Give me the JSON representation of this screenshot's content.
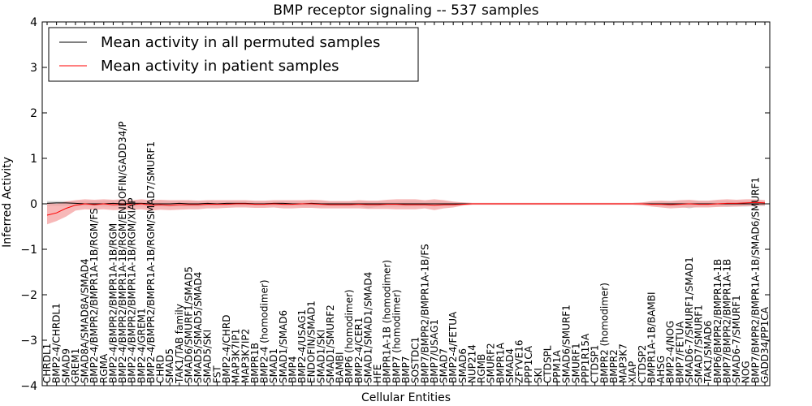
{
  "chart_data": {
    "type": "line",
    "title": "BMP receptor signaling -- 537 samples",
    "xlabel": "Cellular Entities",
    "ylabel": "Inferred Activity",
    "ylim": [
      -4,
      4
    ],
    "yticks": [
      -4,
      -3,
      -2,
      -1,
      0,
      1,
      2,
      3,
      4
    ],
    "legend_position": "top-left",
    "colors": {
      "permuted": "#000000",
      "patient": "#ff0000",
      "patient_band": "#f4a0a0",
      "permuted_band": "#cccccc"
    },
    "categories": [
      "CHRDL1",
      "BMP2-4/CHRDL1",
      "SMAD9",
      "GREM1",
      "SMAD8A/SMAD8A/SMAD4",
      "BMP2-4/BMPR2/BMPR1A-1B/RGM/FS",
      "RGMA",
      "BMP2-4/BMPR2/BMPR1A-1B/RGM",
      "BMP2-4/BMPR2/BMPR1A-1B/RGM/ENDOFIN/GADD34/P",
      "BMP2-4/BMPR2/BMPR1A-1B/RGM/XIAP",
      "BMP2-4/GREM1",
      "BMP2-4/BMPR2/BMPR1A-1B/RGM/SMAD7/SMURF1",
      "CHRD",
      "SMAD5",
      "TAK1/TAB family",
      "SMAD6/SMURF1/SMAD5",
      "SMAD5/SMAD5/SMAD4",
      "SMAD5/SKI",
      "FST",
      "BMP2-4/CHRD",
      "MAP3K7IP1",
      "MAP3K7IP2",
      "BMPR1B",
      "BMP2-4 (homodimer)",
      "SMAD1",
      "SMAD1/SMAD6",
      "BMP4",
      "BMP2-4/USAG1",
      "ENDOFIN/SMAD1",
      "SMAD1/SKI",
      "SMAD1/SMURF2",
      "BAMBI",
      "BMP6 (homodimer)",
      "BMP2-4/CER1",
      "SMAD1/SMAD1/SMAD4",
      "HFE",
      "BMPR1A-1B (homodimer)",
      "BMP7 (homodimer)",
      "BMP7",
      "SOSTDC1",
      "BMP7/BMPR2/BMPR1A-1B/FS",
      "BMP7/USAG1",
      "SMAD7",
      "BMP2-4/FETUA",
      "SMAD6",
      "NUP214",
      "RGMB",
      "SMURF2",
      "BMPR1A",
      "SMAD4",
      "ZFYVE16",
      "PPP1CA",
      "SKI",
      "CTDSPL",
      "PPM1A",
      "SMAD6/SMURF1",
      "SMURF1",
      "PPP1R15A",
      "CTDSP1",
      "BMPR2 (homodimer)",
      "BMPR2",
      "MAP3K7",
      "XIAP",
      "CTDSP2",
      "BMPR1A-1B/BAMBI",
      "AHSG",
      "BMP2-4/NOG",
      "BMP7/FETUA",
      "SMAD6-7/SMURF1/SMAD1",
      "SMAD7/SMURF1",
      "TAK1/SMAD6",
      "BMP6/BMPR2/BMPR1A-1B",
      "BMP7/BMPR2/BMPR1A-1B",
      "SMAD6-7/SMURF1",
      "NOG",
      "BMP7/BMPR2/BMPR1A-1B/SMAD6/SMURF1",
      "GADD34/PP1CA"
    ],
    "series": [
      {
        "name": "Mean activity in all permuted samples",
        "values": [
          0.01,
          0.02,
          0.02,
          0.01,
          0.0,
          0.0,
          0.0,
          0.01,
          0.0,
          0.01,
          0.01,
          0.0,
          0.0,
          0.0,
          0.01,
          0.0,
          0.0,
          0.01,
          0.0,
          0.01,
          0.01,
          0.01,
          0.0,
          0.0,
          0.01,
          0.01,
          0.0,
          0.0,
          0.01,
          0.0,
          0.0,
          0.0,
          0.0,
          0.0,
          0.0,
          0.0,
          0.0,
          0.0,
          0.0,
          0.0,
          0.0,
          0.0,
          0.0,
          0.0,
          0.0,
          0.0,
          0.0,
          0.0,
          0.0,
          0.0,
          0.0,
          0.0,
          0.0,
          0.0,
          0.0,
          0.0,
          0.0,
          0.0,
          0.0,
          0.0,
          0.0,
          0.0,
          0.0,
          0.0,
          0.0,
          0.0,
          0.0,
          0.0,
          0.0,
          0.0,
          0.0,
          0.0,
          0.0,
          0.0,
          0.0,
          0.0,
          0.0
        ],
        "lower": [
          -0.04,
          -0.05,
          -0.05,
          -0.05,
          -0.05,
          -0.05,
          -0.06,
          -0.06,
          -0.06,
          -0.06,
          -0.06,
          -0.06,
          -0.06,
          -0.07,
          -0.06,
          -0.06,
          -0.06,
          -0.05,
          -0.05,
          -0.05,
          -0.05,
          -0.05,
          -0.05,
          -0.05,
          -0.05,
          -0.05,
          -0.05,
          -0.06,
          -0.06,
          -0.06,
          -0.05,
          -0.05,
          -0.05,
          -0.05,
          -0.1,
          -0.06,
          -0.06,
          -0.06,
          -0.06,
          -0.05,
          -0.05,
          -0.05,
          -0.05,
          -0.04,
          -0.03,
          -0.02,
          -0.02,
          -0.02,
          -0.02,
          -0.02,
          -0.02,
          -0.02,
          -0.02,
          -0.02,
          -0.02,
          -0.02,
          -0.02,
          -0.02,
          -0.02,
          -0.02,
          -0.02,
          -0.02,
          -0.02,
          -0.03,
          -0.04,
          -0.05,
          -0.06,
          -0.06,
          -0.1,
          -0.06,
          -0.06,
          -0.06,
          -0.07,
          -0.06,
          -0.06,
          -0.05,
          -0.05
        ],
        "upper": [
          0.06,
          0.06,
          0.06,
          0.06,
          0.06,
          0.06,
          0.07,
          0.07,
          0.06,
          0.06,
          0.06,
          0.06,
          0.06,
          0.06,
          0.06,
          0.06,
          0.06,
          0.06,
          0.06,
          0.06,
          0.06,
          0.06,
          0.05,
          0.05,
          0.05,
          0.06,
          0.06,
          0.06,
          0.06,
          0.06,
          0.05,
          0.05,
          0.05,
          0.05,
          0.05,
          0.05,
          0.05,
          0.05,
          0.06,
          0.06,
          0.05,
          0.06,
          0.05,
          0.04,
          0.03,
          0.02,
          0.02,
          0.02,
          0.02,
          0.02,
          0.02,
          0.02,
          0.02,
          0.02,
          0.02,
          0.02,
          0.02,
          0.02,
          0.02,
          0.02,
          0.02,
          0.02,
          0.02,
          0.03,
          0.04,
          0.05,
          0.06,
          0.06,
          0.06,
          0.06,
          0.06,
          0.06,
          0.07,
          0.06,
          0.06,
          0.06,
          0.06
        ]
      },
      {
        "name": "Mean activity in patient samples",
        "values": [
          -0.25,
          -0.2,
          -0.1,
          -0.03,
          0.0,
          -0.02,
          0.0,
          -0.02,
          -0.01,
          -0.02,
          0.0,
          -0.03,
          -0.02,
          -0.03,
          -0.02,
          -0.02,
          -0.02,
          -0.01,
          -0.01,
          -0.01,
          0.0,
          0.0,
          -0.01,
          -0.01,
          0.0,
          -0.01,
          -0.01,
          0.0,
          0.0,
          -0.01,
          -0.02,
          -0.02,
          -0.02,
          -0.01,
          -0.02,
          -0.02,
          -0.01,
          -0.01,
          -0.02,
          -0.02,
          -0.02,
          -0.03,
          -0.02,
          -0.02,
          -0.01,
          0.0,
          0.0,
          0.0,
          0.0,
          0.0,
          0.0,
          0.0,
          0.0,
          0.0,
          0.0,
          0.0,
          0.0,
          0.0,
          0.0,
          0.0,
          0.0,
          0.0,
          0.0,
          0.0,
          -0.01,
          -0.01,
          -0.02,
          -0.01,
          0.0,
          -0.01,
          -0.01,
          0.0,
          0.01,
          0.01,
          0.02,
          0.03,
          0.02
        ],
        "lower": [
          -0.45,
          -0.38,
          -0.28,
          -0.15,
          -0.12,
          -0.13,
          -0.12,
          -0.14,
          -0.13,
          -0.13,
          -0.12,
          -0.15,
          -0.13,
          -0.14,
          -0.13,
          -0.12,
          -0.12,
          -0.1,
          -0.1,
          -0.09,
          -0.08,
          -0.08,
          -0.09,
          -0.09,
          -0.08,
          -0.1,
          -0.1,
          -0.09,
          -0.09,
          -0.1,
          -0.1,
          -0.1,
          -0.1,
          -0.1,
          -0.11,
          -0.11,
          -0.11,
          -0.12,
          -0.12,
          -0.12,
          -0.1,
          -0.14,
          -0.1,
          -0.08,
          -0.04,
          -0.02,
          -0.02,
          -0.02,
          -0.02,
          -0.02,
          -0.02,
          -0.02,
          -0.02,
          -0.02,
          -0.02,
          -0.02,
          -0.02,
          -0.02,
          -0.02,
          -0.02,
          -0.02,
          -0.02,
          -0.02,
          -0.03,
          -0.06,
          -0.08,
          -0.1,
          -0.09,
          -0.08,
          -0.08,
          -0.08,
          -0.07,
          -0.06,
          -0.06,
          -0.05,
          -0.04,
          -0.03
        ],
        "upper": [
          0.02,
          0.0,
          0.05,
          0.08,
          0.1,
          0.09,
          0.1,
          0.09,
          0.1,
          0.08,
          0.1,
          0.08,
          0.09,
          0.08,
          0.08,
          0.08,
          0.07,
          0.08,
          0.08,
          0.08,
          0.08,
          0.08,
          0.07,
          0.07,
          0.08,
          0.08,
          0.08,
          0.08,
          0.09,
          0.08,
          0.06,
          0.06,
          0.06,
          0.08,
          0.07,
          0.07,
          0.09,
          0.1,
          0.1,
          0.1,
          0.08,
          0.1,
          0.08,
          0.05,
          0.03,
          0.02,
          0.02,
          0.02,
          0.02,
          0.02,
          0.02,
          0.02,
          0.02,
          0.02,
          0.02,
          0.02,
          0.02,
          0.02,
          0.02,
          0.02,
          0.02,
          0.02,
          0.02,
          0.03,
          0.06,
          0.07,
          0.06,
          0.08,
          0.09,
          0.07,
          0.07,
          0.09,
          0.1,
          0.09,
          0.1,
          0.1,
          0.08
        ]
      }
    ]
  }
}
